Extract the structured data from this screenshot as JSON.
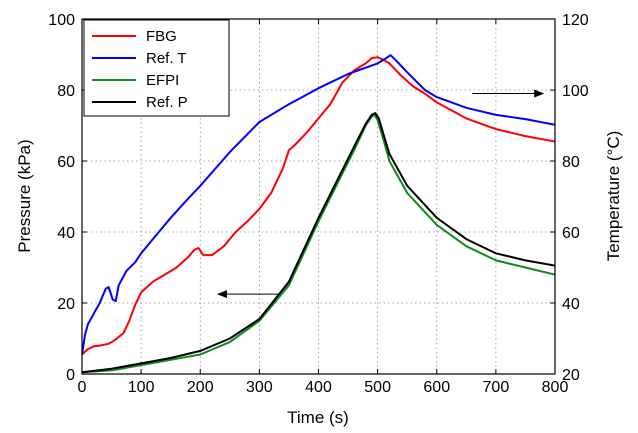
{
  "chart_data": {
    "type": "line",
    "xlabel": "Time (s)",
    "ylabel": "Pressure (kPa)",
    "y2label": "Temperature (°C)",
    "xlim": [
      0,
      800
    ],
    "ylim": [
      0,
      100
    ],
    "y2lim": [
      20,
      120
    ],
    "xticks": [
      "0",
      "100",
      "200",
      "300",
      "400",
      "500",
      "600",
      "700",
      "800"
    ],
    "yticks": [
      "0",
      "20",
      "40",
      "60",
      "80",
      "100"
    ],
    "y2ticks": [
      "20",
      "40",
      "60",
      "80",
      "100",
      "120"
    ],
    "grid": true,
    "legend_position": "top-left",
    "series": [
      {
        "name": "FBG",
        "axis": "right",
        "color": "#ff0000",
        "x": [
          0,
          10,
          20,
          30,
          45,
          55,
          70,
          80,
          90,
          100,
          120,
          140,
          160,
          180,
          190,
          197,
          205,
          220,
          240,
          260,
          280,
          300,
          320,
          340,
          350,
          360,
          380,
          400,
          420,
          440,
          460,
          480,
          490,
          500,
          510,
          520,
          540,
          560,
          580,
          600,
          650,
          700,
          750,
          800
        ],
        "y": [
          25.5,
          27,
          27.8,
          28,
          28.5,
          29.5,
          31.5,
          35,
          39.5,
          43,
          46,
          48,
          50,
          53,
          55,
          55.5,
          53.5,
          53.5,
          56,
          60,
          63,
          66.5,
          71,
          78,
          83,
          84.5,
          88,
          92,
          96,
          102,
          105.5,
          107.5,
          109,
          109.2,
          108.5,
          107.5,
          104,
          101,
          99,
          96.5,
          92,
          89,
          87,
          85.5
        ]
      },
      {
        "name": "Ref. T",
        "axis": "right",
        "color": "#0000ff",
        "x": [
          0,
          5,
          10,
          20,
          30,
          40,
          45,
          52,
          57,
          62,
          75,
          90,
          100,
          120,
          150,
          180,
          200,
          250,
          300,
          350,
          400,
          450,
          500,
          510,
          522,
          530,
          550,
          580,
          600,
          650,
          700,
          750,
          800
        ],
        "y": [
          25.5,
          31,
          34,
          37,
          40,
          44,
          44.5,
          41,
          40.5,
          45,
          49,
          51.5,
          54,
          58,
          64,
          69.5,
          73,
          82.5,
          91,
          96,
          100.5,
          104.5,
          107.5,
          108.5,
          109.8,
          108.5,
          105,
          100,
          98,
          95,
          93,
          91.8,
          90.2
        ]
      },
      {
        "name": "EFPI",
        "axis": "left",
        "color": "#0f8a1e",
        "x": [
          0,
          50,
          100,
          150,
          200,
          250,
          300,
          350,
          400,
          430,
          460,
          480,
          490,
          495,
          500,
          510,
          520,
          550,
          600,
          650,
          700,
          750,
          800
        ],
        "y": [
          0.5,
          1,
          2.5,
          4,
          5.5,
          9,
          15,
          25,
          43,
          53,
          63,
          70,
          72.5,
          73,
          71.5,
          66,
          60,
          51,
          42,
          36,
          32,
          30,
          28
        ]
      },
      {
        "name": "Ref. P",
        "axis": "left",
        "color": "#000000",
        "x": [
          0,
          50,
          100,
          150,
          200,
          250,
          300,
          350,
          400,
          430,
          460,
          480,
          490,
          496,
          502,
          510,
          520,
          550,
          600,
          650,
          700,
          750,
          800
        ],
        "y": [
          0.5,
          1.5,
          3,
          4.5,
          6.5,
          10,
          15.5,
          26,
          44,
          54,
          64,
          70.5,
          73,
          73.5,
          72,
          67.5,
          62,
          53,
          44,
          38,
          34,
          32,
          30.5
        ]
      }
    ],
    "annotations": [
      {
        "type": "arrow",
        "direction": "right",
        "axis": "right",
        "x_from": 660,
        "x_to": 780,
        "y": 99
      },
      {
        "type": "arrow",
        "direction": "left",
        "axis": "left",
        "x_from": 335,
        "x_to": 230,
        "y": 22.5
      }
    ]
  }
}
